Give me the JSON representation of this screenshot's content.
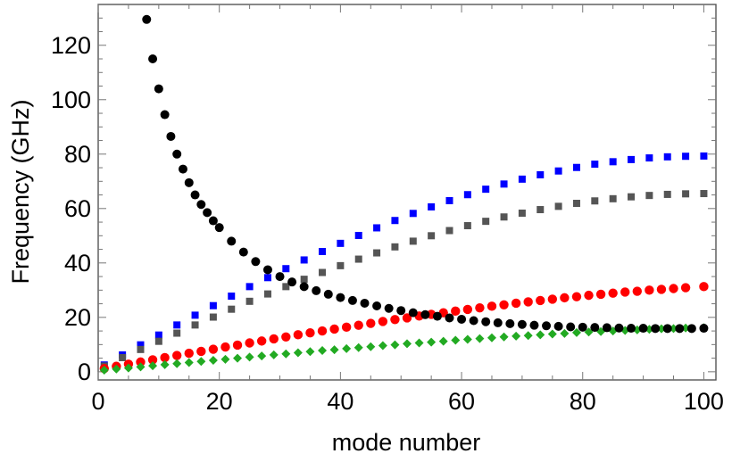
{
  "chart_data": {
    "type": "scatter",
    "title": "",
    "xlabel": "mode number",
    "ylabel": "Frequency (GHz)",
    "xlim": [
      0,
      102
    ],
    "ylim": [
      -3,
      135
    ],
    "xticks": [
      0,
      20,
      40,
      60,
      80,
      100
    ],
    "yticks": [
      0,
      20,
      40,
      60,
      80,
      100,
      120
    ],
    "xtick_labels": [
      "0",
      "20",
      "40",
      "60",
      "80",
      "100"
    ],
    "ytick_labels": [
      "0",
      "20",
      "40",
      "60",
      "80",
      "100",
      "120"
    ],
    "grid": false,
    "legend": "none",
    "series": [
      {
        "marker": "circle",
        "color": "#000000",
        "x": [
          8,
          9,
          10,
          11,
          12,
          13,
          14,
          15,
          16,
          17,
          18,
          19,
          20,
          22,
          24,
          26,
          28,
          30,
          32,
          34,
          36,
          38,
          40,
          42,
          44,
          46,
          48,
          50,
          52,
          54,
          56,
          58,
          60,
          62,
          64,
          66,
          68,
          70,
          72,
          74,
          76,
          78,
          80,
          82,
          84,
          86,
          88,
          90,
          92,
          94,
          96,
          98,
          100
        ],
        "y": [
          129.5,
          115,
          104,
          94.5,
          86.5,
          80,
          74.5,
          69.5,
          65,
          61.5,
          58.5,
          55.5,
          53,
          48,
          44,
          40.5,
          37.5,
          35,
          33,
          31.3,
          29.8,
          28.5,
          27.3,
          26.2,
          25.2,
          24.2,
          23.3,
          22.5,
          21.7,
          21,
          20.4,
          19.8,
          19.3,
          18.8,
          18.4,
          18,
          17.7,
          17.4,
          17.1,
          16.9,
          16.7,
          16.5,
          16.4,
          16.3,
          16.2,
          16.1,
          16,
          16,
          15.9,
          15.9,
          15.9,
          15.9,
          16
        ]
      },
      {
        "marker": "square",
        "color": "#0000ff",
        "x": [
          1,
          4,
          7,
          10,
          13,
          16,
          19,
          22,
          25,
          28,
          31,
          34,
          37,
          40,
          43,
          46,
          49,
          52,
          55,
          58,
          61,
          64,
          67,
          70,
          73,
          76,
          79,
          82,
          85,
          88,
          91,
          94,
          97,
          100
        ],
        "y": [
          2.5,
          6.2,
          9.9,
          13.5,
          17.2,
          20.8,
          24.3,
          27.8,
          31.3,
          34.6,
          37.9,
          41.1,
          44.2,
          47.2,
          50.1,
          52.9,
          55.6,
          58.2,
          60.6,
          62.9,
          65.1,
          67.1,
          69,
          70.8,
          72.4,
          73.8,
          75.1,
          76.3,
          77.2,
          78,
          78.6,
          79,
          79.2,
          79.3
        ]
      },
      {
        "marker": "square",
        "color": "#555555",
        "x": [
          1,
          4,
          7,
          10,
          13,
          16,
          19,
          22,
          25,
          28,
          31,
          34,
          37,
          40,
          43,
          46,
          49,
          52,
          55,
          58,
          61,
          64,
          67,
          70,
          73,
          76,
          79,
          82,
          85,
          88,
          91,
          94,
          97,
          100
        ],
        "y": [
          2.1,
          5.2,
          8.2,
          11.2,
          14.2,
          17.2,
          20.1,
          23,
          25.9,
          28.6,
          31.3,
          34,
          36.5,
          39,
          41.4,
          43.7,
          45.9,
          48,
          50,
          51.9,
          53.7,
          55.3,
          56.9,
          58.3,
          59.6,
          60.8,
          61.9,
          62.8,
          63.6,
          64.3,
          64.8,
          65.2,
          65.4,
          65.5
        ]
      },
      {
        "marker": "circle",
        "color": "#ff0000",
        "x": [
          1,
          3,
          5,
          7,
          9,
          11,
          13,
          15,
          17,
          19,
          21,
          23,
          25,
          27,
          29,
          31,
          33,
          35,
          37,
          39,
          41,
          43,
          45,
          47,
          49,
          51,
          53,
          55,
          57,
          59,
          61,
          63,
          65,
          67,
          69,
          71,
          73,
          75,
          77,
          79,
          81,
          83,
          85,
          87,
          89,
          91,
          93,
          95,
          97,
          100
        ],
        "y": [
          1.2,
          2,
          2.8,
          3.6,
          4.4,
          5.2,
          6,
          6.8,
          7.5,
          8.3,
          9.1,
          9.8,
          10.6,
          11.3,
          12.1,
          12.8,
          13.6,
          14.3,
          15,
          15.7,
          16.4,
          17.1,
          17.8,
          18.5,
          19.2,
          19.8,
          20.5,
          21.1,
          21.7,
          22.3,
          22.9,
          23.5,
          24.1,
          24.6,
          25.2,
          25.7,
          26.2,
          26.7,
          27.2,
          27.6,
          28.1,
          28.5,
          28.9,
          29.3,
          29.6,
          30,
          30.3,
          30.6,
          30.9,
          31.3
        ]
      },
      {
        "marker": "diamond",
        "color": "#22aa22",
        "x": [
          1,
          3,
          5,
          7,
          9,
          11,
          13,
          15,
          17,
          19,
          21,
          23,
          25,
          27,
          29,
          31,
          33,
          35,
          37,
          39,
          41,
          43,
          45,
          47,
          49,
          51,
          53,
          55,
          57,
          59,
          61,
          63,
          65,
          67,
          69,
          71,
          73,
          75,
          77,
          79,
          81,
          83,
          85,
          87,
          89,
          91,
          93,
          95,
          97,
          100
        ],
        "y": [
          0.6,
          1,
          1.4,
          1.8,
          2.2,
          2.6,
          3,
          3.4,
          3.8,
          4.2,
          4.6,
          5,
          5.4,
          5.8,
          6.2,
          6.6,
          7,
          7.4,
          7.8,
          8.1,
          8.5,
          8.9,
          9.2,
          9.6,
          9.9,
          10.3,
          10.6,
          10.9,
          11.2,
          11.6,
          11.9,
          12.2,
          12.5,
          12.8,
          13.1,
          13.3,
          13.6,
          13.9,
          14.1,
          14.4,
          14.6,
          14.8,
          15,
          15.2,
          15.4,
          15.6,
          15.8,
          15.9,
          16.1,
          16.2
        ]
      }
    ]
  }
}
